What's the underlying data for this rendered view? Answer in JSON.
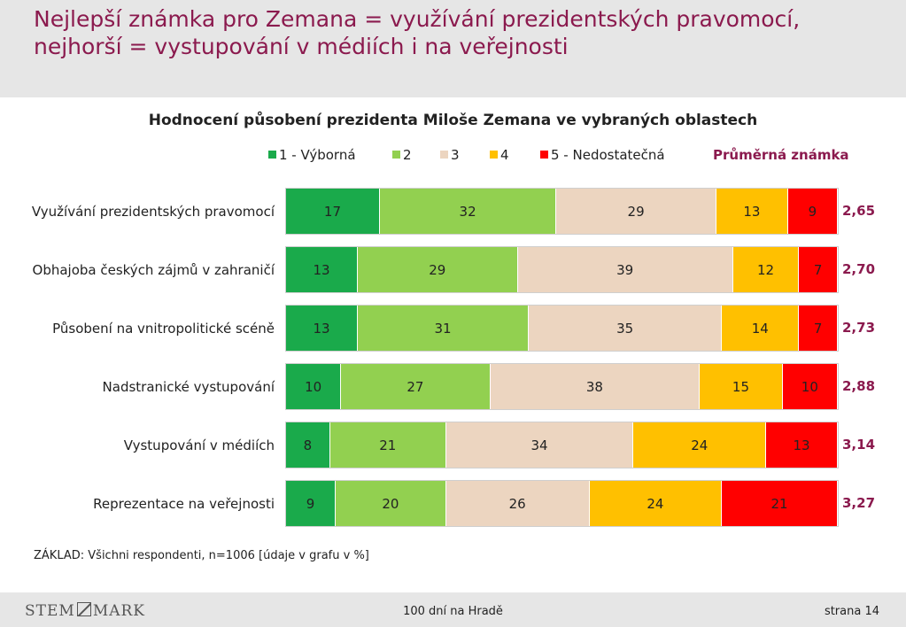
{
  "header": {
    "title_line1": "Nejlepší známka pro Zemana = využívání prezidentských pravomocí,",
    "title_line2": "nejhorší = vystupování v médiích i na veřejnosti"
  },
  "chart_data": {
    "type": "bar",
    "orientation": "horizontal-stacked-100",
    "title": "Hodnocení působení prezidenta Miloše Zemana ve vybraných oblastech",
    "legend_placement": "top",
    "average_label": "Průměrná známka",
    "categories": [
      "Využívání prezidentských pravomocí",
      "Obhajoba českých zájmů v zahraničí",
      "Působení na vnitropolitické scéně",
      "Nadstranické vystupování",
      "Vystupování v médiích",
      "Reprezentace na veřejnosti"
    ],
    "series": [
      {
        "name": "1 - Výborná",
        "color": "#1aaa4b",
        "values": [
          17,
          13,
          13,
          10,
          8,
          9
        ]
      },
      {
        "name": "2",
        "color": "#92d050",
        "values": [
          32,
          29,
          31,
          27,
          21,
          20
        ]
      },
      {
        "name": "3",
        "color": "#ecd5c0",
        "values": [
          29,
          39,
          35,
          38,
          34,
          26
        ]
      },
      {
        "name": "4",
        "color": "#ffc000",
        "values": [
          13,
          12,
          14,
          15,
          24,
          24
        ]
      },
      {
        "name": "5 - Nedostatečná",
        "color": "#ff0000",
        "values": [
          9,
          7,
          7,
          10,
          13,
          21
        ]
      }
    ],
    "averages": [
      "2,65",
      "2,70",
      "2,73",
      "2,88",
      "3,14",
      "3,27"
    ]
  },
  "footnote": "ZÁKLAD: Všichni respondenti, n=1006 [údaje v grafu v %]",
  "footer": {
    "logo_left": "STEM",
    "logo_right": "MARK",
    "center": "100 dní na Hradě",
    "page": "strana 14"
  }
}
